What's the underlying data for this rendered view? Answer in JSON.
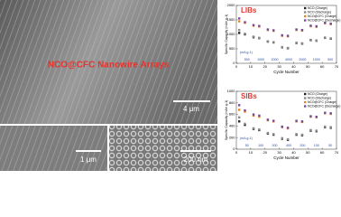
{
  "images": {
    "title": "NCO@CFC Nanowire Arrays",
    "scale_bars": [
      "4 μm",
      "1 μm",
      "200 nm"
    ]
  },
  "chart_data": [
    {
      "type": "scatter",
      "label": "LIBs",
      "rate_unit": "(mA g-1)",
      "rates": [
        "500",
        "1000",
        "2000",
        "4000",
        "2000",
        "1000",
        "500"
      ],
      "x_label": "Cycle Number",
      "y_label": "Specific Capacity (mAh g-1)",
      "x": [
        2,
        6,
        12,
        16,
        22,
        26,
        32,
        36,
        42,
        46,
        52,
        56,
        62,
        66
      ],
      "series": [
        {
          "name": "NCO (Charge)",
          "color": "#222222",
          "values": [
            1050,
            1000,
            900,
            870,
            750,
            720,
            550,
            520,
            700,
            680,
            800,
            780,
            880,
            850
          ]
        },
        {
          "name": "NCO (Discharge)",
          "color": "#8a8a8a",
          "values": [
            1150,
            1020,
            920,
            880,
            760,
            730,
            560,
            530,
            710,
            690,
            810,
            790,
            890,
            860
          ]
        },
        {
          "name": "NCO@CFC (Charge)",
          "color": "#e8821e",
          "values": [
            1450,
            1400,
            1300,
            1270,
            1150,
            1120,
            950,
            930,
            1150,
            1130,
            1280,
            1260,
            1380,
            1350
          ]
        },
        {
          "name": "NCO@CFC (Discharge)",
          "color": "#7a4a9a",
          "values": [
            1550,
            1420,
            1320,
            1290,
            1170,
            1140,
            970,
            950,
            1170,
            1150,
            1300,
            1280,
            1400,
            1370
          ]
        }
      ],
      "xlim": [
        0,
        70
      ],
      "xticks": [
        0,
        10,
        20,
        30,
        40,
        50,
        60,
        70
      ],
      "ylim": [
        0,
        2000
      ],
      "yticks": [
        0,
        500,
        1000,
        1500,
        2000
      ]
    },
    {
      "type": "scatter",
      "label": "SIBs",
      "rate_unit": "(mA g-1)",
      "rates": [
        "50",
        "100",
        "200",
        "400",
        "200",
        "100",
        "50"
      ],
      "x_label": "Cycle Number",
      "y_label": "Specific Capacity (mAh g-1)",
      "x": [
        2,
        6,
        12,
        16,
        22,
        26,
        32,
        36,
        42,
        46,
        52,
        56,
        62,
        66
      ],
      "series": [
        {
          "name": "NCO (Charge)",
          "color": "#222222",
          "values": [
            480,
            420,
            350,
            330,
            270,
            250,
            180,
            160,
            250,
            240,
            320,
            310,
            380,
            370
          ]
        },
        {
          "name": "NCO (Discharge)",
          "color": "#8a8a8a",
          "values": [
            550,
            440,
            360,
            340,
            280,
            260,
            190,
            170,
            260,
            250,
            330,
            320,
            390,
            380
          ]
        },
        {
          "name": "NCO@CFC (Charge)",
          "color": "#e8821e",
          "values": [
            680,
            650,
            580,
            560,
            500,
            480,
            380,
            360,
            480,
            470,
            560,
            550,
            620,
            610
          ]
        },
        {
          "name": "NCO@CFC (Discharge)",
          "color": "#7a4a9a",
          "values": [
            760,
            670,
            600,
            580,
            510,
            490,
            390,
            370,
            490,
            480,
            570,
            560,
            630,
            620
          ]
        }
      ],
      "xlim": [
        0,
        70
      ],
      "xticks": [
        0,
        10,
        20,
        30,
        40,
        50,
        60,
        70
      ],
      "ylim": [
        0,
        1000
      ],
      "yticks": [
        0,
        200,
        400,
        600,
        800,
        1000
      ]
    }
  ]
}
